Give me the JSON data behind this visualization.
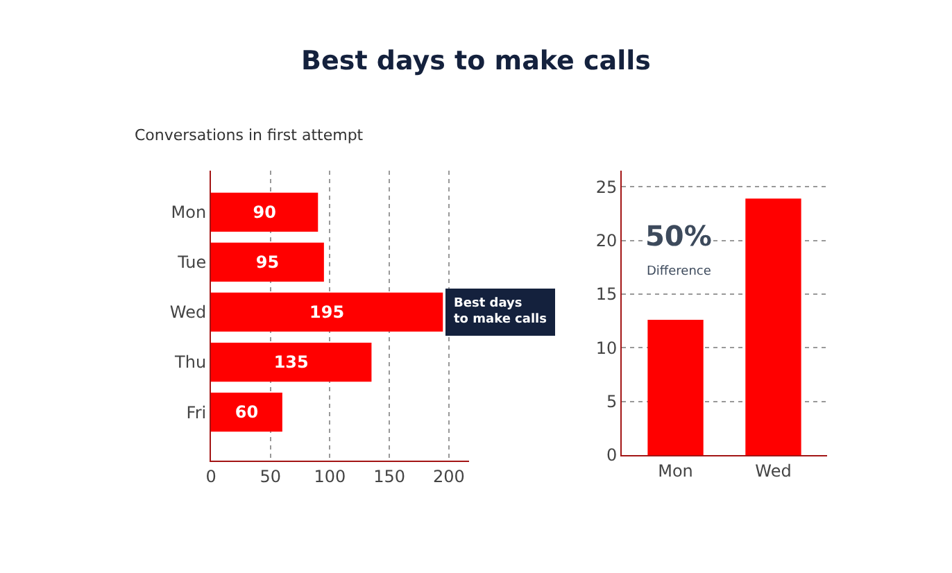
{
  "chart_data": [
    {
      "type": "bar",
      "title": "Best days to make calls",
      "subtitle": "Conversations in first attempt",
      "orientation": "horizontal",
      "categories": [
        "Mon",
        "Tue",
        "Wed",
        "Thu",
        "Fri"
      ],
      "values": [
        90,
        95,
        195,
        135,
        60
      ],
      "color": "#ff0000",
      "data_labels": true,
      "xlim": [
        0,
        217
      ],
      "xticks": [
        0,
        50,
        100,
        150,
        200
      ],
      "grid": "x",
      "annotations": [
        {
          "text": "Best days to make calls",
          "x": 195,
          "y": "Wed"
        }
      ]
    },
    {
      "type": "bar",
      "categories": [
        "Mon",
        "Wed"
      ],
      "values": [
        12.6,
        23.9
      ],
      "color": "#ff0000",
      "ylim": [
        0,
        26.5
      ],
      "yticks": [
        0,
        5,
        10,
        15,
        20,
        25
      ],
      "grid": "y",
      "annotations": [
        "50%",
        "Difference"
      ]
    }
  ]
}
